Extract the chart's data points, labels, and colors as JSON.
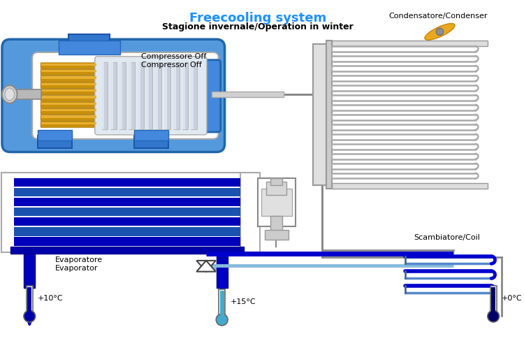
{
  "title": "Freecooling system",
  "subtitle": "Stagione invernale/Operation in winter",
  "bg_color": "#ffffff",
  "title_color": "#1e90ff",
  "subtitle_color": "#000000",
  "label_compressor": [
    "Compressore Off",
    "Compressor Off"
  ],
  "label_evaporator": [
    "Evaporatore",
    "Evaporator"
  ],
  "label_condenser": "Condensatore/Condenser",
  "label_coil": "Scambiatore/Coil",
  "temp_left": "+10°C",
  "temp_middle": "+15°C",
  "temp_right": "+0°C",
  "blue_dark": "#0000cd",
  "blue_mid": "#1565c0",
  "blue_casing": "#4499dd",
  "blue_bright": "#00bfff",
  "gray_light": "#cccccc",
  "gray_med": "#999999",
  "silver": "#c8c8c8",
  "gold": "#c8a020",
  "white": "#ffffff",
  "pipe_gray": "#aaaaaa",
  "fan_gold": "#e8a820"
}
